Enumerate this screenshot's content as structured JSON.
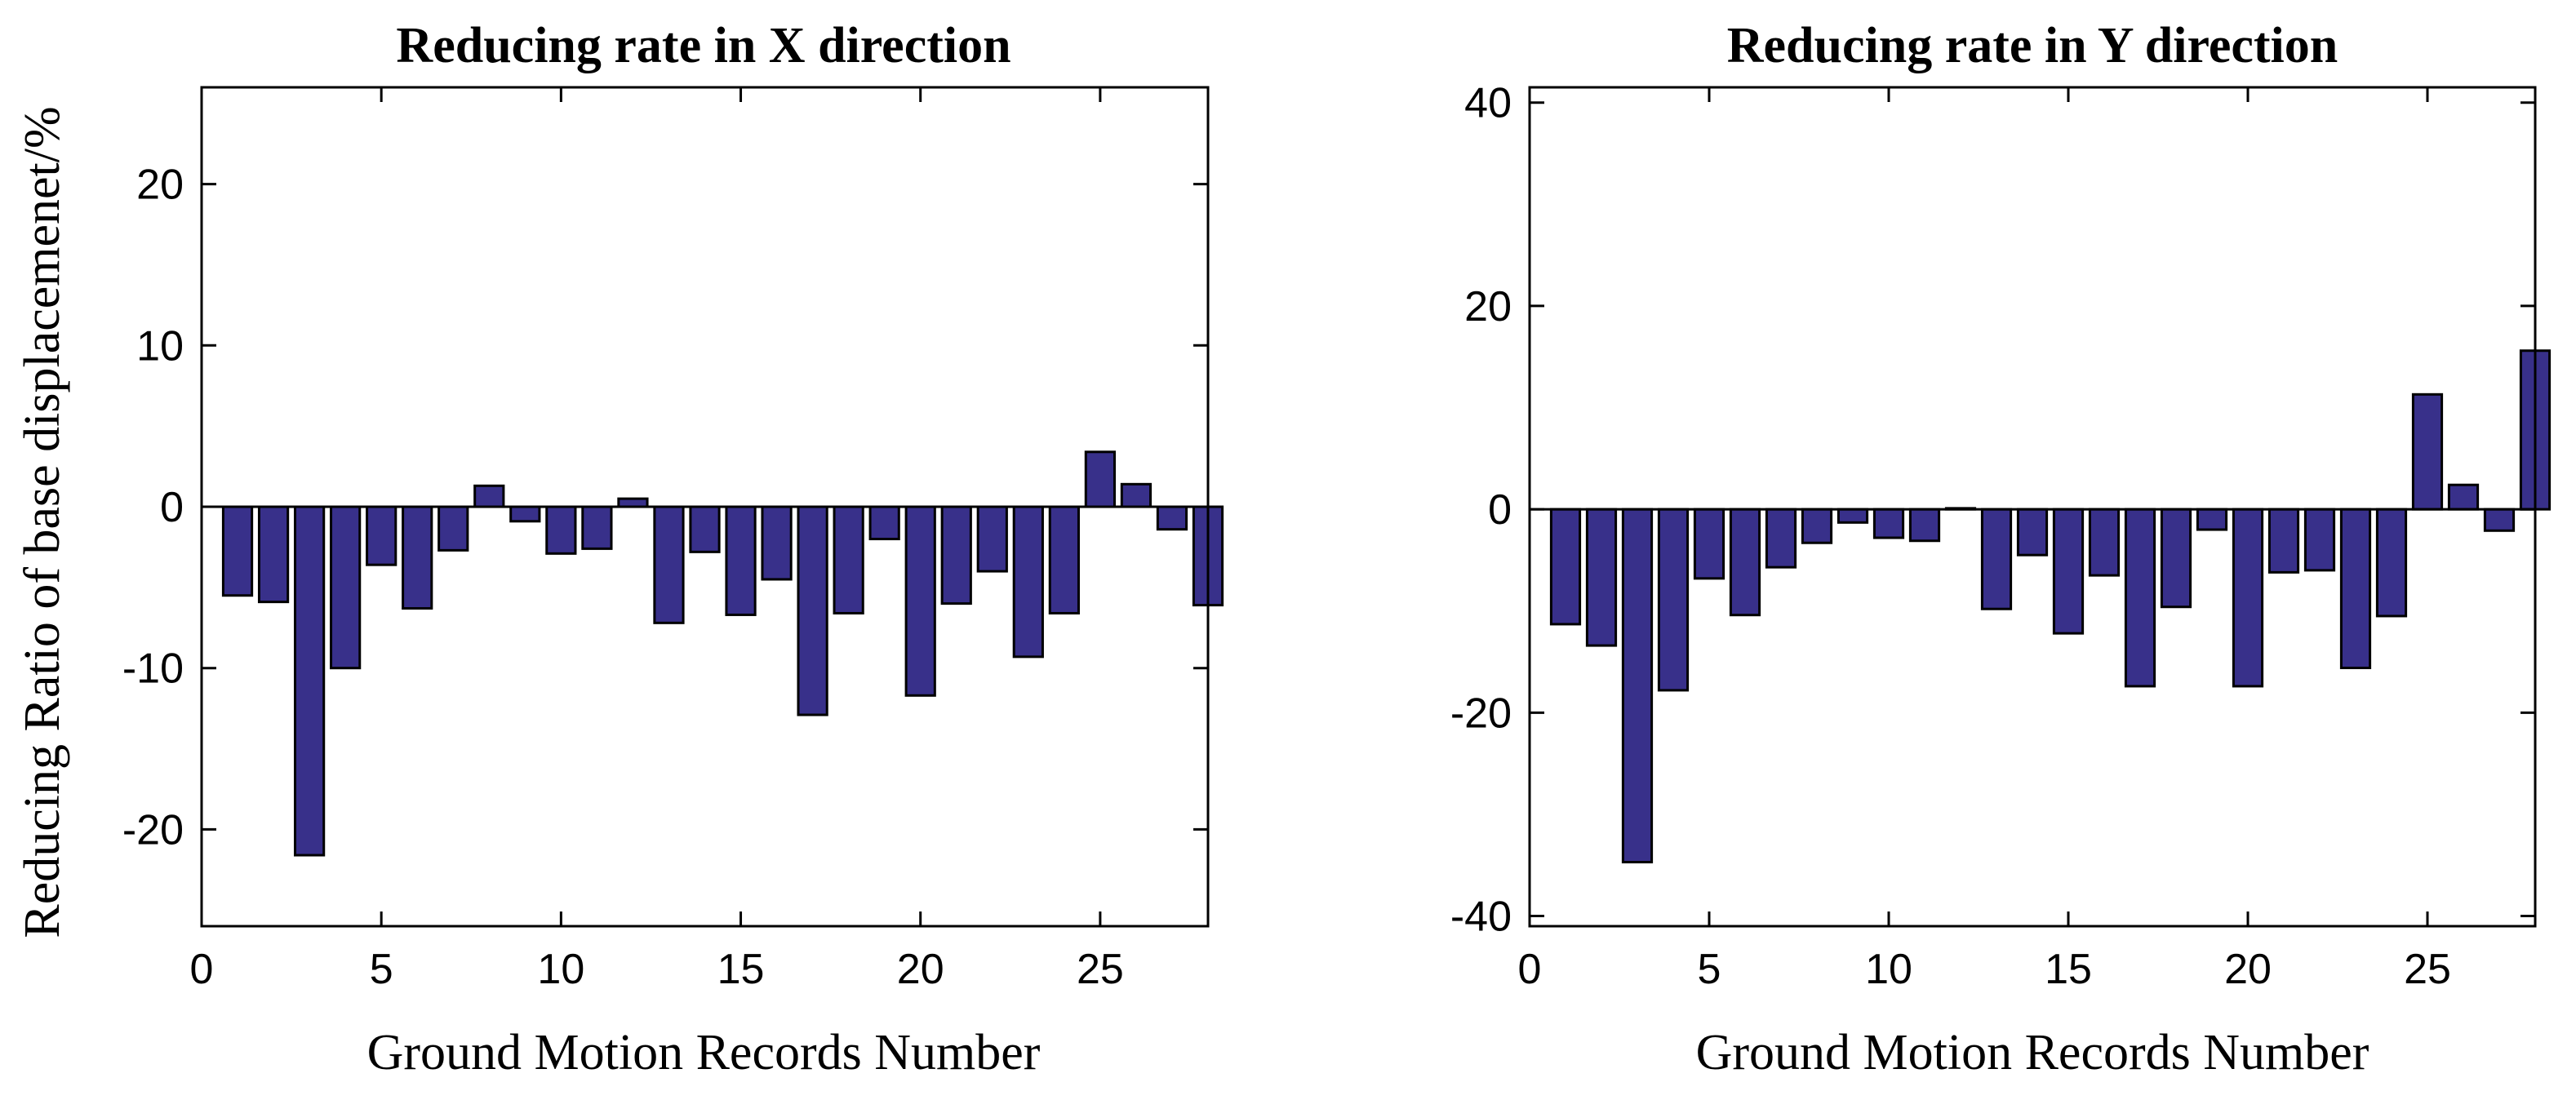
{
  "chart_data": [
    {
      "type": "bar",
      "title": "Reducing rate in X direction",
      "xlabel": "Ground Motion Records Number",
      "ylabel": "Reducing Ratio of base displacemenet/%",
      "xlim": [
        0,
        28
      ],
      "ylim": [
        -26,
        26
      ],
      "xticks": [
        0,
        5,
        10,
        15,
        20,
        25
      ],
      "yticks": [
        -20,
        -10,
        0,
        10,
        20
      ],
      "categories": [
        1,
        2,
        3,
        4,
        5,
        6,
        7,
        8,
        9,
        10,
        11,
        12,
        13,
        14,
        15,
        16,
        17,
        18,
        19,
        20,
        21,
        22,
        23,
        24,
        25,
        26,
        27,
        28
      ],
      "values": [
        -5.5,
        -5.9,
        -21.6,
        -10.0,
        -3.6,
        -6.3,
        -2.7,
        1.3,
        -0.9,
        -2.9,
        -2.6,
        0.5,
        -7.2,
        -2.8,
        -6.7,
        -4.5,
        -12.9,
        -6.6,
        -2.0,
        -11.7,
        -6.0,
        -4.0,
        -9.3,
        -6.6,
        3.4,
        1.4,
        -1.4,
        -6.1
      ],
      "bar_color": "#38308a",
      "grid": false
    },
    {
      "type": "bar",
      "title": "Reducing rate in Y direction",
      "xlabel": "Ground Motion Records Number",
      "ylabel": "",
      "xlim": [
        0,
        28
      ],
      "ylim": [
        -41,
        41.5
      ],
      "xticks": [
        0,
        5,
        10,
        15,
        20,
        25
      ],
      "yticks": [
        -40,
        -20,
        0,
        20,
        40
      ],
      "categories": [
        1,
        2,
        3,
        4,
        5,
        6,
        7,
        8,
        9,
        10,
        11,
        12,
        13,
        14,
        15,
        16,
        17,
        18,
        19,
        20,
        21,
        22,
        23,
        24,
        25,
        26,
        27,
        28
      ],
      "values": [
        -11.3,
        -13.4,
        -34.7,
        -17.8,
        -6.8,
        -10.4,
        -5.7,
        -3.3,
        -1.3,
        -2.8,
        -3.1,
        0.1,
        -9.8,
        -4.5,
        -12.2,
        -6.5,
        -17.4,
        -9.6,
        -2.0,
        -17.4,
        -6.2,
        -6.0,
        -15.6,
        -10.5,
        11.3,
        2.4,
        -2.1,
        15.6
      ],
      "bar_color": "#38308a",
      "grid": false
    }
  ]
}
